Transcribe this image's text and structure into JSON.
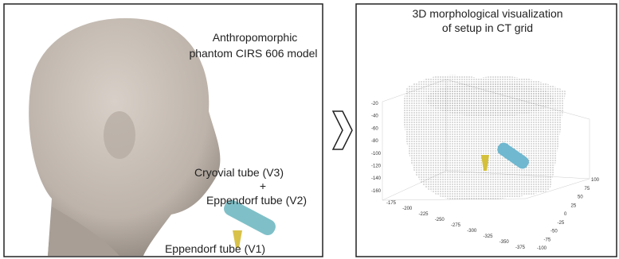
{
  "left_panel": {
    "title_lines": [
      "Anthropomorphic",
      "phantom CIRS 606 model"
    ],
    "labels": [
      "Cryovial tube (V3)",
      "+",
      "Eppendorf tube (V2)",
      "Eppendorf tube (V1)"
    ]
  },
  "right_panel": {
    "title_lines": [
      "3D morphological visualization",
      "of setup in CT grid"
    ],
    "z_ticks": [
      -20,
      -40,
      -60,
      -80,
      -100,
      -120,
      -140,
      -160
    ],
    "x_ticks": [
      -175,
      -200,
      -225,
      -250,
      -275,
      -300,
      -325,
      -350,
      -375
    ],
    "y_ticks": [
      100,
      75,
      50,
      25,
      0,
      -25,
      -50,
      -75,
      -100
    ]
  }
}
